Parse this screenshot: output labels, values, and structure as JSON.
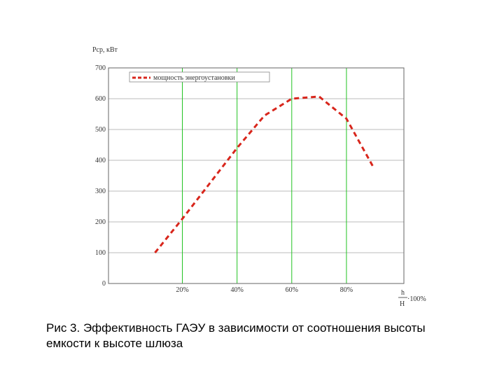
{
  "chart_data": {
    "type": "line",
    "y_label": "Pср, кВт",
    "x_label": {
      "numerator": "h",
      "denominator": "H",
      "suffix": "·100%"
    },
    "caption": [
      "Рис 3. Эффективность ГАЭУ в зависимости от соотношения высоты",
      "емкости к высоте шлюза"
    ],
    "x": [
      10,
      20,
      30,
      40,
      50,
      60,
      70,
      80,
      90
    ],
    "series": [
      {
        "name": "мощность энергоустановки",
        "color": "#d8261c",
        "values": [
          100,
          210,
          325,
          440,
          545,
          600,
          607,
          535,
          375
        ]
      }
    ],
    "xlim": [
      -7,
      101
    ],
    "xticks": [
      {
        "value": 20,
        "label": "20%"
      },
      {
        "value": 40,
        "label": "40%"
      },
      {
        "value": 60,
        "label": "60%"
      },
      {
        "value": 80,
        "label": "80%"
      }
    ],
    "ylim": [
      0,
      700
    ],
    "yticks": [
      0,
      100,
      200,
      300,
      400,
      500,
      600,
      700
    ],
    "grid": true,
    "grid_color_x": "#22c322",
    "grid_color_y": "#bbbbbb",
    "legend": "upper left"
  }
}
